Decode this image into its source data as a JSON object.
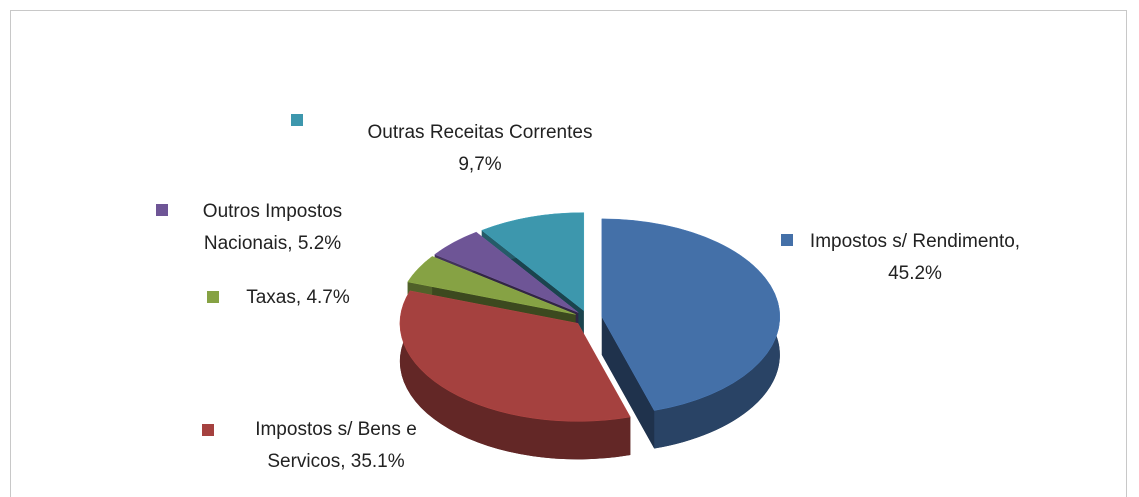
{
  "chart_data": {
    "type": "pie",
    "categories": [
      "Impostos s/ Rendimento",
      "Impostos s/ Bens e Servicos",
      "Taxas",
      "Outros Impostos Nacionais",
      "Outras Receitas Correntes"
    ],
    "values": [
      45.2,
      35.1,
      4.7,
      5.2,
      9.7
    ],
    "value_labels": [
      "45.2%",
      "35.1%",
      "4.7%",
      "5.2%",
      "9,7%"
    ],
    "label_separator": ",",
    "colors": [
      "#4470a8",
      "#a5413f",
      "#86a244",
      "#6e5596",
      "#3d97ad"
    ],
    "exploded": true,
    "three_d": true
  }
}
